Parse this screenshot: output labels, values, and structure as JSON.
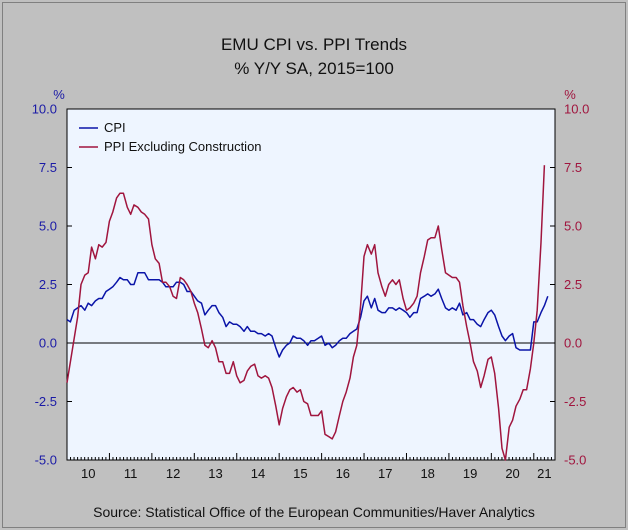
{
  "chart_data": {
    "type": "line",
    "title": "EMU CPI vs. PPI Trends",
    "subtitle": "% Y/Y   SA, 2015=100",
    "left_unit": "%",
    "right_unit": "%",
    "ylim": [
      -5.0,
      10.0
    ],
    "y_ticks": [
      "10.0",
      "7.5",
      "5.0",
      "2.5",
      "0.0",
      "-2.5",
      "-5.0"
    ],
    "x_ticks": [
      "10",
      "11",
      "12",
      "13",
      "14",
      "15",
      "16",
      "17",
      "18",
      "19",
      "20",
      "21"
    ],
    "x_range": [
      2010.0,
      2021.5
    ],
    "legend_position": "top-left",
    "source": "Source:  Statistical Office of the European Communities/Haver Analytics",
    "colors": {
      "cpi": "#0a14a8",
      "ppi": "#a0153e",
      "axis_left": "#1a1aa6",
      "axis_right": "#a0153e",
      "plot_bg": "#eef5ff"
    },
    "series": [
      {
        "name": "CPI",
        "points": [
          [
            2010.0,
            1.0
          ],
          [
            2010.08,
            0.9
          ],
          [
            2010.17,
            1.4
          ],
          [
            2010.25,
            1.5
          ],
          [
            2010.33,
            1.6
          ],
          [
            2010.42,
            1.4
          ],
          [
            2010.5,
            1.7
          ],
          [
            2010.58,
            1.6
          ],
          [
            2010.67,
            1.8
          ],
          [
            2010.75,
            1.9
          ],
          [
            2010.83,
            1.9
          ],
          [
            2010.92,
            2.2
          ],
          [
            2011.0,
            2.3
          ],
          [
            2011.08,
            2.4
          ],
          [
            2011.17,
            2.6
          ],
          [
            2011.25,
            2.8
          ],
          [
            2011.33,
            2.7
          ],
          [
            2011.42,
            2.7
          ],
          [
            2011.5,
            2.5
          ],
          [
            2011.58,
            2.5
          ],
          [
            2011.67,
            3.0
          ],
          [
            2011.75,
            3.0
          ],
          [
            2011.83,
            3.0
          ],
          [
            2011.92,
            2.7
          ],
          [
            2012.0,
            2.7
          ],
          [
            2012.08,
            2.7
          ],
          [
            2012.17,
            2.7
          ],
          [
            2012.25,
            2.6
          ],
          [
            2012.33,
            2.4
          ],
          [
            2012.42,
            2.4
          ],
          [
            2012.5,
            2.4
          ],
          [
            2012.58,
            2.6
          ],
          [
            2012.67,
            2.6
          ],
          [
            2012.75,
            2.5
          ],
          [
            2012.83,
            2.2
          ],
          [
            2012.92,
            2.2
          ],
          [
            2013.0,
            2.0
          ],
          [
            2013.08,
            1.8
          ],
          [
            2013.17,
            1.7
          ],
          [
            2013.25,
            1.2
          ],
          [
            2013.33,
            1.4
          ],
          [
            2013.42,
            1.6
          ],
          [
            2013.5,
            1.6
          ],
          [
            2013.58,
            1.3
          ],
          [
            2013.67,
            1.1
          ],
          [
            2013.75,
            0.7
          ],
          [
            2013.83,
            0.9
          ],
          [
            2013.92,
            0.8
          ],
          [
            2014.0,
            0.8
          ],
          [
            2014.08,
            0.7
          ],
          [
            2014.17,
            0.5
          ],
          [
            2014.25,
            0.7
          ],
          [
            2014.33,
            0.5
          ],
          [
            2014.42,
            0.5
          ],
          [
            2014.5,
            0.4
          ],
          [
            2014.58,
            0.4
          ],
          [
            2014.67,
            0.3
          ],
          [
            2014.75,
            0.4
          ],
          [
            2014.83,
            0.3
          ],
          [
            2014.92,
            -0.2
          ],
          [
            2015.0,
            -0.6
          ],
          [
            2015.08,
            -0.3
          ],
          [
            2015.17,
            -0.1
          ],
          [
            2015.25,
            0.0
          ],
          [
            2015.33,
            0.3
          ],
          [
            2015.42,
            0.2
          ],
          [
            2015.5,
            0.2
          ],
          [
            2015.58,
            0.1
          ],
          [
            2015.67,
            -0.1
          ],
          [
            2015.75,
            0.1
          ],
          [
            2015.83,
            0.1
          ],
          [
            2015.92,
            0.2
          ],
          [
            2016.0,
            0.3
          ],
          [
            2016.08,
            -0.1
          ],
          [
            2016.17,
            0.0
          ],
          [
            2016.25,
            -0.2
          ],
          [
            2016.33,
            -0.1
          ],
          [
            2016.42,
            0.1
          ],
          [
            2016.5,
            0.2
          ],
          [
            2016.58,
            0.2
          ],
          [
            2016.67,
            0.4
          ],
          [
            2016.75,
            0.5
          ],
          [
            2016.83,
            0.6
          ],
          [
            2016.92,
            1.1
          ],
          [
            2017.0,
            1.8
          ],
          [
            2017.08,
            2.0
          ],
          [
            2017.17,
            1.5
          ],
          [
            2017.25,
            1.9
          ],
          [
            2017.33,
            1.4
          ],
          [
            2017.42,
            1.3
          ],
          [
            2017.5,
            1.3
          ],
          [
            2017.58,
            1.5
          ],
          [
            2017.67,
            1.5
          ],
          [
            2017.75,
            1.4
          ],
          [
            2017.83,
            1.5
          ],
          [
            2017.92,
            1.4
          ],
          [
            2018.0,
            1.3
          ],
          [
            2018.08,
            1.1
          ],
          [
            2018.17,
            1.3
          ],
          [
            2018.25,
            1.3
          ],
          [
            2018.33,
            1.9
          ],
          [
            2018.42,
            2.0
          ],
          [
            2018.5,
            2.1
          ],
          [
            2018.58,
            2.0
          ],
          [
            2018.67,
            2.1
          ],
          [
            2018.75,
            2.3
          ],
          [
            2018.83,
            1.9
          ],
          [
            2018.92,
            1.5
          ],
          [
            2019.0,
            1.4
          ],
          [
            2019.08,
            1.5
          ],
          [
            2019.17,
            1.4
          ],
          [
            2019.25,
            1.7
          ],
          [
            2019.33,
            1.2
          ],
          [
            2019.42,
            1.3
          ],
          [
            2019.5,
            1.0
          ],
          [
            2019.58,
            1.0
          ],
          [
            2019.67,
            0.8
          ],
          [
            2019.75,
            0.7
          ],
          [
            2019.83,
            1.0
          ],
          [
            2019.92,
            1.3
          ],
          [
            2020.0,
            1.4
          ],
          [
            2020.08,
            1.2
          ],
          [
            2020.17,
            0.7
          ],
          [
            2020.25,
            0.3
          ],
          [
            2020.33,
            0.1
          ],
          [
            2020.42,
            0.3
          ],
          [
            2020.5,
            0.4
          ],
          [
            2020.58,
            -0.2
          ],
          [
            2020.67,
            -0.3
          ],
          [
            2020.75,
            -0.3
          ],
          [
            2020.83,
            -0.3
          ],
          [
            2020.92,
            -0.3
          ],
          [
            2021.0,
            0.9
          ],
          [
            2021.08,
            0.9
          ],
          [
            2021.17,
            1.3
          ],
          [
            2021.25,
            1.6
          ],
          [
            2021.33,
            2.0
          ]
        ]
      },
      {
        "name": "PPI Excluding Construction",
        "points": [
          [
            2010.0,
            -1.7
          ],
          [
            2010.08,
            -0.8
          ],
          [
            2010.17,
            0.2
          ],
          [
            2010.25,
            1.1
          ],
          [
            2010.33,
            2.5
          ],
          [
            2010.42,
            2.9
          ],
          [
            2010.5,
            3.0
          ],
          [
            2010.58,
            4.1
          ],
          [
            2010.67,
            3.6
          ],
          [
            2010.75,
            4.2
          ],
          [
            2010.83,
            4.1
          ],
          [
            2010.92,
            4.3
          ],
          [
            2011.0,
            5.2
          ],
          [
            2011.08,
            5.6
          ],
          [
            2011.17,
            6.2
          ],
          [
            2011.25,
            6.4
          ],
          [
            2011.33,
            6.4
          ],
          [
            2011.42,
            5.8
          ],
          [
            2011.5,
            5.5
          ],
          [
            2011.58,
            5.9
          ],
          [
            2011.67,
            5.8
          ],
          [
            2011.75,
            5.6
          ],
          [
            2011.83,
            5.5
          ],
          [
            2011.92,
            5.3
          ],
          [
            2012.0,
            4.2
          ],
          [
            2012.08,
            3.6
          ],
          [
            2012.17,
            3.4
          ],
          [
            2012.25,
            2.6
          ],
          [
            2012.33,
            2.6
          ],
          [
            2012.42,
            2.4
          ],
          [
            2012.5,
            2.0
          ],
          [
            2012.58,
            1.9
          ],
          [
            2012.67,
            2.8
          ],
          [
            2012.75,
            2.7
          ],
          [
            2012.83,
            2.5
          ],
          [
            2012.92,
            2.2
          ],
          [
            2013.0,
            1.7
          ],
          [
            2013.08,
            1.3
          ],
          [
            2013.17,
            0.6
          ],
          [
            2013.25,
            -0.1
          ],
          [
            2013.33,
            -0.2
          ],
          [
            2013.42,
            0.1
          ],
          [
            2013.5,
            -0.2
          ],
          [
            2013.58,
            -0.8
          ],
          [
            2013.67,
            -0.8
          ],
          [
            2013.75,
            -1.3
          ],
          [
            2013.83,
            -1.3
          ],
          [
            2013.92,
            -0.8
          ],
          [
            2014.0,
            -1.4
          ],
          [
            2014.08,
            -1.7
          ],
          [
            2014.17,
            -1.6
          ],
          [
            2014.25,
            -1.2
          ],
          [
            2014.33,
            -1.0
          ],
          [
            2014.42,
            -0.9
          ],
          [
            2014.5,
            -1.4
          ],
          [
            2014.58,
            -1.5
          ],
          [
            2014.67,
            -1.4
          ],
          [
            2014.75,
            -1.5
          ],
          [
            2014.83,
            -1.9
          ],
          [
            2014.92,
            -2.7
          ],
          [
            2015.0,
            -3.5
          ],
          [
            2015.08,
            -2.8
          ],
          [
            2015.17,
            -2.3
          ],
          [
            2015.25,
            -2.0
          ],
          [
            2015.33,
            -1.9
          ],
          [
            2015.42,
            -2.1
          ],
          [
            2015.5,
            -2.0
          ],
          [
            2015.58,
            -2.5
          ],
          [
            2015.67,
            -2.6
          ],
          [
            2015.75,
            -3.1
          ],
          [
            2015.83,
            -3.1
          ],
          [
            2015.92,
            -3.1
          ],
          [
            2016.0,
            -2.9
          ],
          [
            2016.08,
            -3.9
          ],
          [
            2016.17,
            -4.0
          ],
          [
            2016.25,
            -4.1
          ],
          [
            2016.33,
            -3.8
          ],
          [
            2016.42,
            -3.1
          ],
          [
            2016.5,
            -2.5
          ],
          [
            2016.58,
            -2.1
          ],
          [
            2016.67,
            -1.5
          ],
          [
            2016.75,
            -0.6
          ],
          [
            2016.83,
            -0.1
          ],
          [
            2016.92,
            1.6
          ],
          [
            2017.0,
            3.7
          ],
          [
            2017.08,
            4.2
          ],
          [
            2017.17,
            3.8
          ],
          [
            2017.25,
            4.2
          ],
          [
            2017.33,
            3.0
          ],
          [
            2017.42,
            2.4
          ],
          [
            2017.5,
            2.0
          ],
          [
            2017.58,
            2.5
          ],
          [
            2017.67,
            2.7
          ],
          [
            2017.75,
            2.5
          ],
          [
            2017.83,
            2.7
          ],
          [
            2017.92,
            1.9
          ],
          [
            2018.0,
            1.4
          ],
          [
            2018.08,
            1.5
          ],
          [
            2018.17,
            1.7
          ],
          [
            2018.25,
            2.0
          ],
          [
            2018.33,
            3.0
          ],
          [
            2018.42,
            3.7
          ],
          [
            2018.5,
            4.4
          ],
          [
            2018.58,
            4.5
          ],
          [
            2018.67,
            4.5
          ],
          [
            2018.75,
            5.0
          ],
          [
            2018.83,
            4.0
          ],
          [
            2018.92,
            3.0
          ],
          [
            2019.0,
            2.9
          ],
          [
            2019.08,
            2.8
          ],
          [
            2019.17,
            2.8
          ],
          [
            2019.25,
            2.6
          ],
          [
            2019.33,
            1.6
          ],
          [
            2019.42,
            0.7
          ],
          [
            2019.5,
            0.0
          ],
          [
            2019.58,
            -0.8
          ],
          [
            2019.67,
            -1.2
          ],
          [
            2019.75,
            -1.9
          ],
          [
            2019.83,
            -1.4
          ],
          [
            2019.92,
            -0.7
          ],
          [
            2020.0,
            -0.6
          ],
          [
            2020.08,
            -1.3
          ],
          [
            2020.17,
            -2.8
          ],
          [
            2020.25,
            -4.5
          ],
          [
            2020.33,
            -5.0
          ],
          [
            2020.42,
            -3.6
          ],
          [
            2020.5,
            -3.3
          ],
          [
            2020.58,
            -2.7
          ],
          [
            2020.67,
            -2.4
          ],
          [
            2020.75,
            -2.0
          ],
          [
            2020.83,
            -2.0
          ],
          [
            2020.92,
            -1.1
          ],
          [
            2021.0,
            0.0
          ],
          [
            2021.08,
            1.4
          ],
          [
            2021.17,
            4.3
          ],
          [
            2021.25,
            7.6
          ]
        ]
      }
    ]
  }
}
